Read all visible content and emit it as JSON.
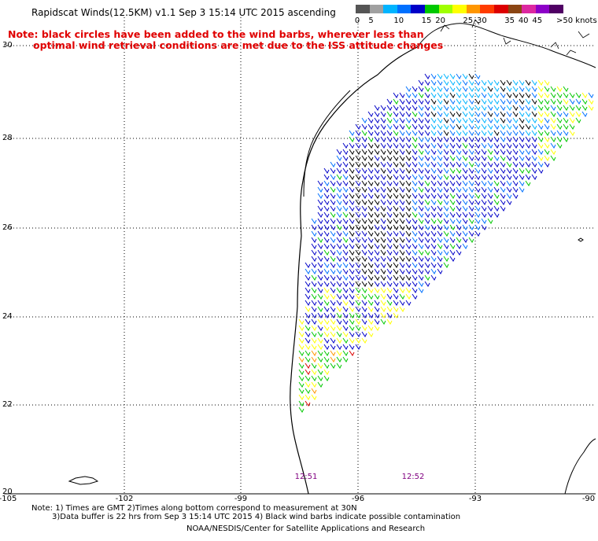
{
  "title": "Rapidscat Winds(12.5KM) v1.1 Sep  3 15:14 UTC 2015 ascending",
  "notice": {
    "line1": "Note: black circles have been added to the wind barbs, wherever less than",
    "line2": "optimal wind retrieval conditions are met due to the ISS attitude changes"
  },
  "legend": {
    "unit": ">50 knots",
    "steps": [
      {
        "label": "0",
        "color": "#555555"
      },
      {
        "label": "5",
        "color": "#a0a0a0"
      },
      {
        "label": "",
        "color": "#00b4ff"
      },
      {
        "label": "10",
        "color": "#0070ff"
      },
      {
        "label": "",
        "color": "#0000c8"
      },
      {
        "label": "15",
        "color": "#00c800"
      },
      {
        "label": "20",
        "color": "#a0ff00"
      },
      {
        "label": "",
        "color": "#ffff00"
      },
      {
        "label": "25",
        "color": "#ff9600"
      },
      {
        "label": "30",
        "color": "#ff3c00"
      },
      {
        "label": "",
        "color": "#dc0000"
      },
      {
        "label": "35",
        "color": "#8b4513"
      },
      {
        "label": "40",
        "color": "#dc28a0"
      },
      {
        "label": "45",
        "color": "#8c00c8"
      },
      {
        "label": "",
        "color": "#500064"
      }
    ]
  },
  "axes": {
    "lat_labels": [
      "30",
      "28",
      "26",
      "24",
      "22",
      "20"
    ],
    "lon_labels": [
      "-105",
      "-102",
      "-99",
      "-96",
      "-93",
      "-90"
    ]
  },
  "pass_times": [
    "12:51",
    "12:52"
  ],
  "footer": {
    "line1": "Note: 1) Times are GMT 2)Times along bottom correspond to measurement at 30N",
    "line2": "3)Data buffer is 22 hrs from Sep  3 15:14 UTC 2015 4) Black wind barbs indicate possible contamination",
    "credit": "NOAA/NESDIS/Center for Satellite Applications and Research"
  },
  "colors": {
    "grid": "#000000",
    "coast": "#000000",
    "barb_palette": [
      "#000000",
      "#00b4ff",
      "#0070ff",
      "#0000c8",
      "#00c800",
      "#ffff00",
      "#ff9600",
      "#dc0000"
    ]
  }
}
